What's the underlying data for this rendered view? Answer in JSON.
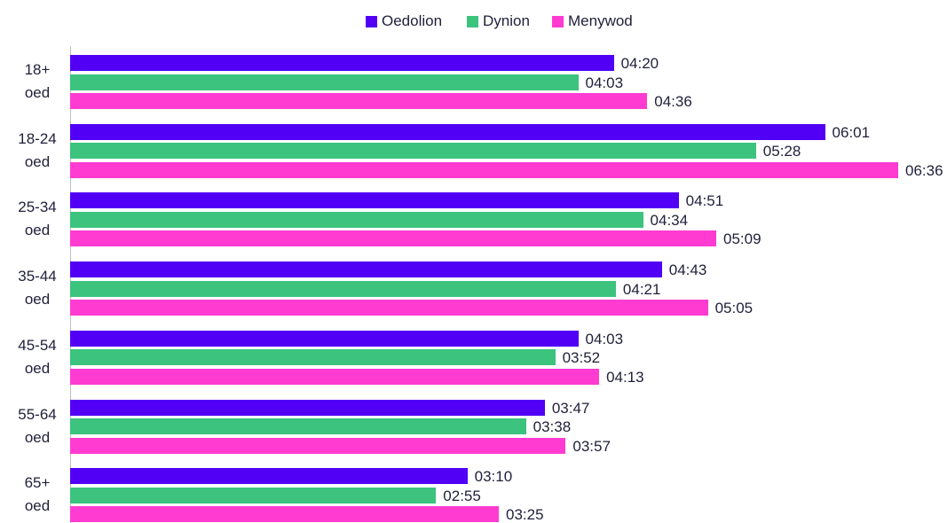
{
  "chart_data": {
    "type": "bar",
    "orientation": "horizontal",
    "categories": [
      "18+ oed",
      "18-24 oed",
      "25-34 oed",
      "35-44 oed",
      "45-54 oed",
      "55-64 oed",
      "65+ oed"
    ],
    "series": [
      {
        "name": "Oedolion",
        "color": "#5100f5",
        "values": [
          260,
          361,
          291,
          283,
          243,
          227,
          190
        ],
        "value_labels": [
          "04:20",
          "06:01",
          "04:51",
          "04:43",
          "04:03",
          "03:47",
          "03:10"
        ]
      },
      {
        "name": "Dynion",
        "color": "#3cc37e",
        "values": [
          243,
          328,
          274,
          261,
          232,
          218,
          175
        ],
        "value_labels": [
          "04:03",
          "05:28",
          "04:34",
          "04:21",
          "03:52",
          "03:38",
          "02:55"
        ]
      },
      {
        "name": "Menywod",
        "color": "#ff3bd1",
        "values": [
          276,
          396,
          309,
          305,
          253,
          237,
          205
        ],
        "value_labels": [
          "04:36",
          "06:36",
          "05:09",
          "05:05",
          "04:13",
          "03:57",
          "03:25"
        ]
      }
    ],
    "legend": "top"
  }
}
